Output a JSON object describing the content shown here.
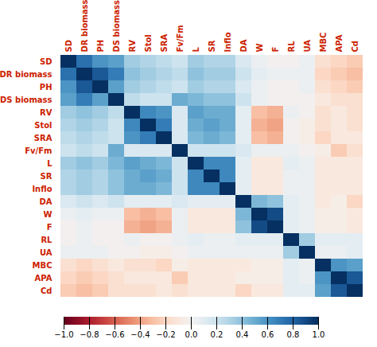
{
  "chart_data": {
    "type": "heatmap",
    "categories": [
      "SD",
      "DR biomass",
      "PH",
      "DS biomass",
      "RV",
      "Stol",
      "SRA",
      "Fv/Fm",
      "L",
      "SR",
      "Inflo",
      "DA",
      "W",
      "F",
      "RL",
      "UA",
      "MBC",
      "APA",
      "Cd"
    ],
    "label_color": "#cc2200",
    "colorbar_range": [
      -1,
      1
    ],
    "colorbar_ticks": [
      1,
      0.8,
      0.6,
      0.4,
      0.2,
      0,
      -0.2,
      -0.4,
      -0.6,
      -0.8,
      -1
    ],
    "matrix": [
      [
        1.0,
        0.75,
        0.6,
        0.55,
        0.35,
        0.3,
        0.25,
        0.2,
        0.35,
        0.3,
        0.3,
        0.15,
        0.05,
        0.0,
        0.0,
        0.05,
        -0.15,
        -0.2,
        -0.25
      ],
      [
        0.75,
        1.0,
        0.85,
        0.7,
        0.4,
        0.35,
        0.3,
        0.25,
        0.4,
        0.35,
        0.35,
        0.2,
        0.1,
        0.05,
        0.05,
        0.05,
        -0.2,
        -0.25,
        -0.3
      ],
      [
        0.6,
        0.85,
        1.0,
        0.55,
        0.35,
        0.3,
        0.25,
        0.2,
        0.35,
        0.3,
        0.3,
        0.15,
        0.05,
        0.0,
        0.0,
        0.05,
        -0.15,
        -0.2,
        -0.25
      ],
      [
        0.55,
        0.7,
        0.55,
        1.0,
        0.25,
        0.2,
        0.2,
        0.5,
        0.45,
        0.4,
        0.4,
        0.2,
        0.05,
        0.0,
        0.0,
        0.0,
        -0.1,
        -0.15,
        -0.15
      ],
      [
        0.35,
        0.4,
        0.35,
        0.25,
        1.0,
        0.65,
        0.6,
        0.15,
        0.55,
        0.5,
        0.5,
        0.1,
        -0.3,
        -0.35,
        0.05,
        0.0,
        -0.15,
        -0.1,
        -0.15
      ],
      [
        0.3,
        0.35,
        0.3,
        0.2,
        0.65,
        1.0,
        0.7,
        0.15,
        0.5,
        0.55,
        0.5,
        0.1,
        -0.35,
        -0.4,
        0.0,
        -0.05,
        -0.15,
        -0.1,
        -0.15
      ],
      [
        0.25,
        0.3,
        0.25,
        0.2,
        0.6,
        0.7,
        1.0,
        0.15,
        0.45,
        0.5,
        0.45,
        0.1,
        -0.3,
        -0.35,
        0.0,
        -0.05,
        -0.2,
        -0.1,
        -0.1
      ],
      [
        0.2,
        0.25,
        0.2,
        0.5,
        0.15,
        0.15,
        0.15,
        1.0,
        0.2,
        0.2,
        0.2,
        0.15,
        0.05,
        0.05,
        0.05,
        0.0,
        -0.05,
        -0.25,
        -0.15
      ],
      [
        0.35,
        0.4,
        0.35,
        0.45,
        0.55,
        0.5,
        0.45,
        0.2,
        1.0,
        0.65,
        0.65,
        0.1,
        -0.1,
        -0.1,
        0.1,
        0.05,
        -0.1,
        -0.1,
        -0.1
      ],
      [
        0.3,
        0.35,
        0.3,
        0.4,
        0.5,
        0.55,
        0.5,
        0.2,
        0.65,
        1.0,
        0.65,
        0.1,
        -0.1,
        -0.1,
        0.05,
        0.05,
        -0.1,
        -0.1,
        -0.1
      ],
      [
        0.3,
        0.35,
        0.3,
        0.4,
        0.5,
        0.5,
        0.45,
        0.2,
        0.65,
        0.65,
        1.0,
        0.1,
        -0.1,
        -0.1,
        0.05,
        0.05,
        -0.1,
        -0.1,
        -0.1
      ],
      [
        0.15,
        0.2,
        0.15,
        0.2,
        0.1,
        0.1,
        0.1,
        0.15,
        0.1,
        0.1,
        0.1,
        1.0,
        0.45,
        0.4,
        0.1,
        0.05,
        -0.1,
        -0.05,
        -0.2
      ],
      [
        0.05,
        0.1,
        0.05,
        0.05,
        -0.3,
        -0.35,
        -0.3,
        0.05,
        -0.1,
        -0.1,
        -0.1,
        0.45,
        1.0,
        0.9,
        0.1,
        0.05,
        -0.05,
        -0.05,
        -0.1
      ],
      [
        0.0,
        0.05,
        0.0,
        0.0,
        -0.35,
        -0.4,
        -0.35,
        0.05,
        -0.1,
        -0.1,
        -0.1,
        0.4,
        0.9,
        1.0,
        0.1,
        0.05,
        -0.05,
        -0.05,
        -0.1
      ],
      [
        0.0,
        0.05,
        0.0,
        0.0,
        0.05,
        0.0,
        0.0,
        0.05,
        0.1,
        0.05,
        0.05,
        0.1,
        0.1,
        0.1,
        1.0,
        0.35,
        0.1,
        0.1,
        0.1
      ],
      [
        0.05,
        0.05,
        0.05,
        0.0,
        0.0,
        -0.05,
        -0.05,
        0.0,
        0.05,
        0.05,
        0.05,
        0.05,
        0.05,
        0.05,
        0.35,
        1.0,
        0.05,
        0.05,
        0.1
      ],
      [
        -0.15,
        -0.2,
        -0.15,
        -0.1,
        -0.15,
        -0.15,
        -0.2,
        -0.05,
        -0.1,
        -0.1,
        -0.1,
        -0.1,
        -0.05,
        -0.05,
        0.1,
        0.05,
        1.0,
        0.6,
        0.55
      ],
      [
        -0.2,
        -0.25,
        -0.2,
        -0.15,
        -0.1,
        -0.1,
        -0.1,
        -0.25,
        -0.1,
        -0.1,
        -0.1,
        -0.05,
        -0.05,
        -0.05,
        0.1,
        0.05,
        0.6,
        1.0,
        0.85
      ],
      [
        -0.25,
        -0.3,
        -0.25,
        -0.15,
        -0.15,
        -0.15,
        -0.1,
        -0.15,
        -0.1,
        -0.1,
        -0.1,
        -0.2,
        -0.1,
        -0.1,
        0.1,
        0.1,
        0.55,
        0.85,
        1.0
      ]
    ]
  }
}
